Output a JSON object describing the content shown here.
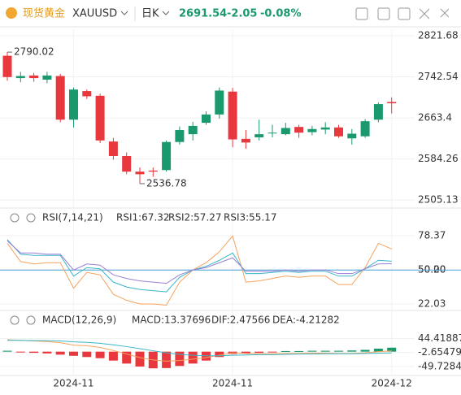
{
  "header": {
    "name": "现货黄金",
    "symbol": "XAUUSD",
    "period": "日K",
    "price": "2691.54",
    "change": "-2.05",
    "change_pct": "-0.08%"
  },
  "chart_data": [
    {
      "type": "candlestick",
      "categories": [
        null,
        null,
        null,
        null,
        null,
        "2024-11",
        null,
        null,
        null,
        null,
        null,
        null,
        null,
        null,
        null,
        null,
        null,
        "2024-11",
        null,
        null,
        null,
        null,
        null,
        null,
        null,
        null,
        null,
        null,
        null,
        "2024-12"
      ],
      "open": [
        2783,
        2740,
        2745,
        2737,
        2744,
        2660,
        2715,
        2706,
        2618,
        2590,
        2560,
        2562,
        2563,
        2617,
        2632,
        2654,
        2670,
        2714,
        2623,
        2626,
        2634,
        2632,
        2646,
        2636,
        2641,
        2645,
        2624,
        2628,
        2660,
        2694
      ],
      "high": [
        2790.02,
        2752,
        2750,
        2752,
        2748,
        2722,
        2718,
        2710,
        2625,
        2597,
        2568,
        2568,
        2620,
        2647,
        2656,
        2676,
        2722,
        2721,
        2640,
        2660,
        2650,
        2654,
        2650,
        2648,
        2655,
        2650,
        2642,
        2661,
        2693,
        2703
      ],
      "low": [
        2735,
        2732,
        2733,
        2730,
        2655,
        2645,
        2700,
        2615,
        2583,
        2555,
        2536.78,
        2550,
        2560,
        2612,
        2620,
        2650,
        2662,
        2607,
        2604,
        2620,
        2626,
        2630,
        2625,
        2630,
        2632,
        2625,
        2612,
        2625,
        2655,
        2672
      ],
      "close": [
        2742,
        2744,
        2740,
        2745,
        2660,
        2718,
        2705,
        2620,
        2590,
        2560,
        2555,
        2560,
        2617,
        2640,
        2648,
        2670,
        2716,
        2622,
        2616,
        2632,
        2635,
        2644,
        2635,
        2642,
        2645,
        2628,
        2633,
        2657,
        2690,
        2691.54
      ],
      "up_color": "#1a9a6c",
      "down_color": "#e8383d",
      "high_label": 2790.02,
      "low_label": 2536.78,
      "ylim": [
        2493,
        2834
      ],
      "yticks": [
        2821.68,
        2742.54,
        2663.4,
        2584.26,
        2505.13
      ],
      "grid": true
    },
    {
      "type": "line",
      "title": "RSI(7,14,21)",
      "series": [
        {
          "name": "RSI1:67.32",
          "color": "#f5a25d",
          "values": [
            72,
            57,
            55,
            56,
            56,
            35,
            48,
            46,
            30,
            25,
            22,
            22,
            21,
            40,
            50,
            56,
            65,
            78,
            40,
            41,
            43,
            45,
            44,
            45,
            45,
            38,
            38,
            52,
            72,
            67.32
          ]
        },
        {
          "name": "RSI2:57.27",
          "color": "#38b6c9",
          "values": [
            75,
            63,
            62,
            62,
            62,
            45,
            52,
            51,
            40,
            36,
            34,
            33,
            32,
            44,
            50,
            53,
            58,
            64,
            47,
            47,
            48,
            49,
            48,
            49,
            49,
            45,
            45,
            51,
            58,
            57.27
          ]
        },
        {
          "name": "RSI3:55.17",
          "color": "#9b7fd6",
          "values": [
            74,
            64,
            64,
            63,
            63,
            50,
            55,
            54,
            46,
            43,
            41,
            40,
            39,
            46,
            50,
            52,
            56,
            60,
            49,
            49,
            49,
            50,
            49,
            50,
            50,
            47,
            47,
            51,
            55,
            55.17
          ]
        }
      ],
      "ylim": [
        18,
        97
      ],
      "yticks": [
        78.37,
        {
          "value": 50.2,
          "label": "50.20"
        },
        {
          "value": 50,
          "label": "50.00"
        },
        22.03
      ],
      "reference_line": {
        "value": 50,
        "color": "#4aa3d8"
      }
    },
    {
      "type": "macd",
      "title": "MACD(12,26,9)",
      "series": [
        {
          "name": "MACD:13.37696",
          "color": "#7a8fd8",
          "values": [
            3,
            -2,
            -4,
            -6,
            -10,
            -14,
            -18,
            -22,
            -30,
            -40,
            -50,
            -56,
            -55,
            -48,
            -40,
            -30,
            -18,
            -8,
            -6,
            -4,
            -2,
            2,
            2,
            3,
            3,
            3,
            4,
            6,
            10,
            13.37696
          ],
          "positive_color": "#1a9a6c",
          "negative_color": "#e8383d"
        },
        {
          "name": "DIF:2.47566",
          "color": "#f5a25d",
          "values": [
            40,
            38,
            36,
            34,
            30,
            22,
            20,
            14,
            4,
            -8,
            -20,
            -28,
            -32,
            -30,
            -25,
            -20,
            -12,
            -4,
            -6,
            -7,
            -7,
            -6,
            -6,
            -5,
            -5,
            -6,
            -6,
            -4,
            0,
            2.47566
          ]
        },
        {
          "name": "DEA:-4.21282",
          "color": "#38b6c9",
          "values": [
            38,
            38,
            37,
            37,
            36,
            33,
            31,
            28,
            23,
            17,
            10,
            3,
            -4,
            -9,
            -12,
            -14,
            -14,
            -12,
            -11,
            -10,
            -10,
            -9,
            -8,
            -8,
            -7,
            -7,
            -7,
            -6,
            -5,
            -4.21282
          ]
        }
      ],
      "ylim": [
        -80,
        100
      ],
      "yticks": [
        44.41887,
        -2.65479,
        -49.72845
      ]
    }
  ]
}
